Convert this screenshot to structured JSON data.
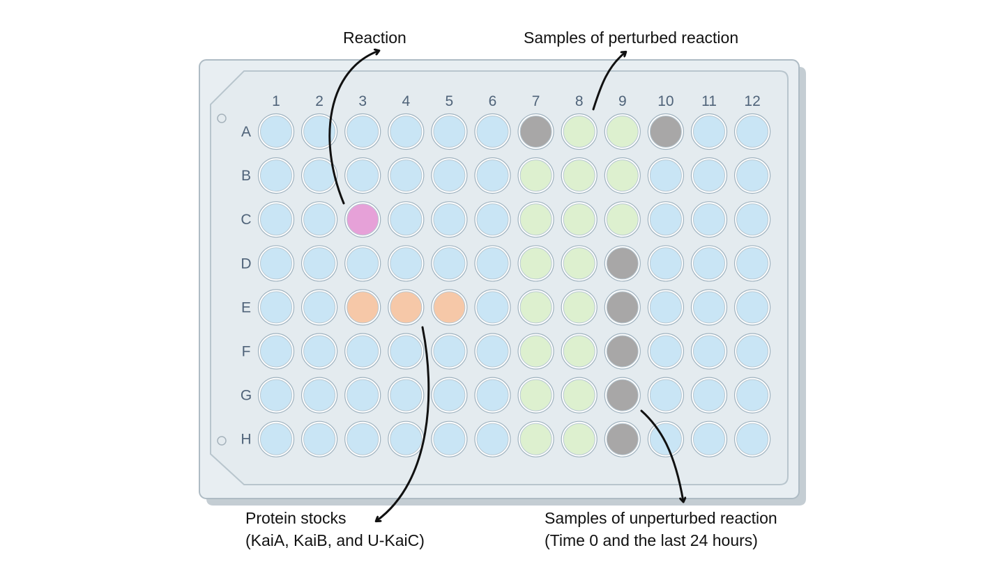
{
  "plate": {
    "columns": [
      "1",
      "2",
      "3",
      "4",
      "5",
      "6",
      "7",
      "8",
      "9",
      "10",
      "11",
      "12"
    ],
    "rows": [
      "A",
      "B",
      "C",
      "D",
      "E",
      "F",
      "G",
      "H"
    ],
    "colors": {
      "default": "#c9e5f5",
      "reaction": "#e6a1d8",
      "protein_stock": "#f6c8a8",
      "perturbed": "#ddf0cf",
      "unperturbed": "#a8a7a7"
    },
    "wells": {
      "C3": "reaction",
      "E3": "protein_stock",
      "E4": "protein_stock",
      "E5": "protein_stock",
      "A7": "unperturbed",
      "A10": "unperturbed",
      "D9": "unperturbed",
      "E9": "unperturbed",
      "F9": "unperturbed",
      "G9": "unperturbed",
      "H9": "unperturbed",
      "A8": "perturbed",
      "A9": "perturbed",
      "B7": "perturbed",
      "B8": "perturbed",
      "B9": "perturbed",
      "C7": "perturbed",
      "C8": "perturbed",
      "C9": "perturbed",
      "D7": "perturbed",
      "D8": "perturbed",
      "E7": "perturbed",
      "E8": "perturbed",
      "F7": "perturbed",
      "F8": "perturbed",
      "G7": "perturbed",
      "G8": "perturbed",
      "H7": "perturbed",
      "H8": "perturbed"
    }
  },
  "annotations": {
    "reaction": "Reaction",
    "perturbed": "Samples of perturbed reaction",
    "protein_line1": "Protein stocks",
    "protein_line2": "(KaiA, KaiB, and U-KaiC)",
    "unperturbed_line1": "Samples of unperturbed reaction",
    "unperturbed_line2": "(Time 0 and the last 24 hours)"
  }
}
